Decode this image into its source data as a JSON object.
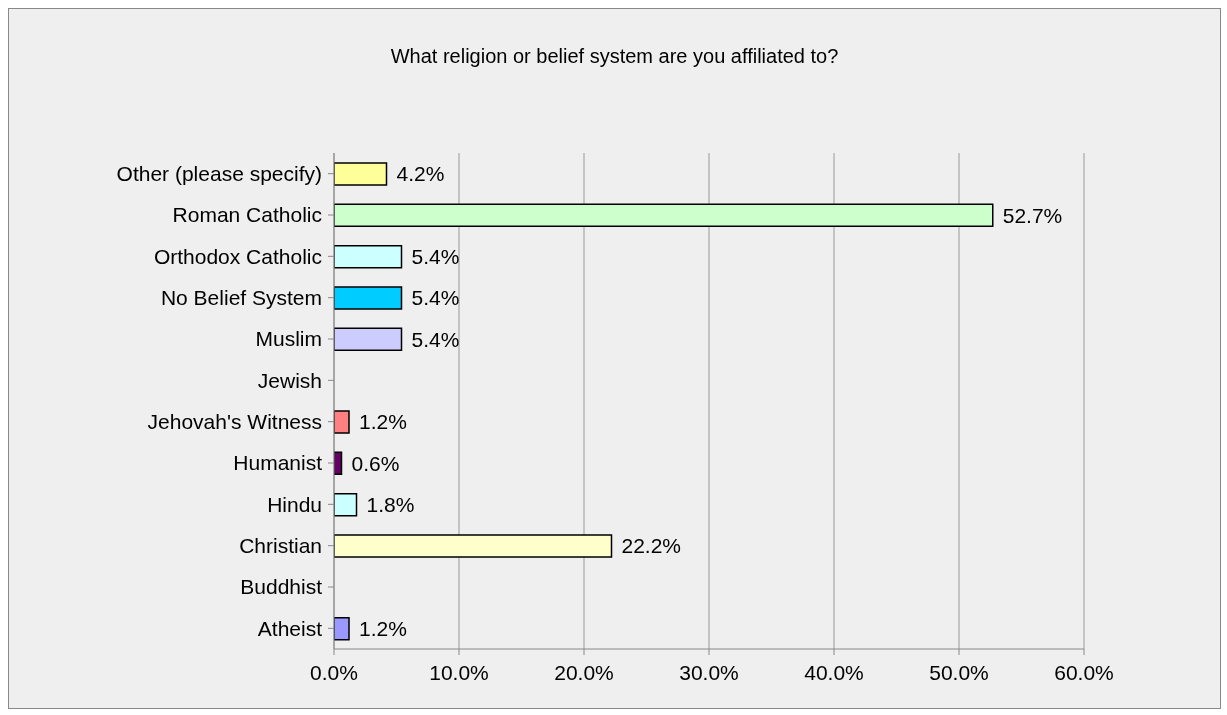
{
  "chart_data": {
    "type": "bar",
    "orientation": "horizontal",
    "title": "What religion or belief system are you affiliated to?",
    "categories": [
      "Other (please specify)",
      "Roman Catholic",
      "Orthodox Catholic",
      "No Belief System",
      "Muslim",
      "Jewish",
      "Jehovah's Witness",
      "Humanist",
      "Hindu",
      "Christian",
      "Buddhist",
      "Atheist"
    ],
    "values": [
      4.2,
      52.7,
      5.4,
      5.4,
      5.4,
      0,
      1.2,
      0.6,
      1.8,
      22.2,
      0,
      1.2
    ],
    "colors": [
      "#ffff99",
      "#ccffcc",
      "#ccffff",
      "#00ccff",
      "#ccccff",
      "#ffffff",
      "#ff8080",
      "#660066",
      "#ccffff",
      "#ffffcc",
      "#ffffff",
      "#9999ff"
    ],
    "value_labels": [
      "4.2%",
      "52.7%",
      "5.4%",
      "5.4%",
      "5.4%",
      null,
      "1.2%",
      "0.6%",
      "1.8%",
      "22.2%",
      null,
      "1.2%"
    ],
    "xlim": [
      0,
      60
    ],
    "xticks": [
      {
        "value": 0,
        "label": "0.0%"
      },
      {
        "value": 10,
        "label": "10.0%"
      },
      {
        "value": 20,
        "label": "20.0%"
      },
      {
        "value": 30,
        "label": "30.0%"
      },
      {
        "value": 40,
        "label": "40.0%"
      },
      {
        "value": 50,
        "label": "50.0%"
      },
      {
        "value": 60,
        "label": "60.0%"
      }
    ],
    "grid": "x",
    "legend": false
  }
}
